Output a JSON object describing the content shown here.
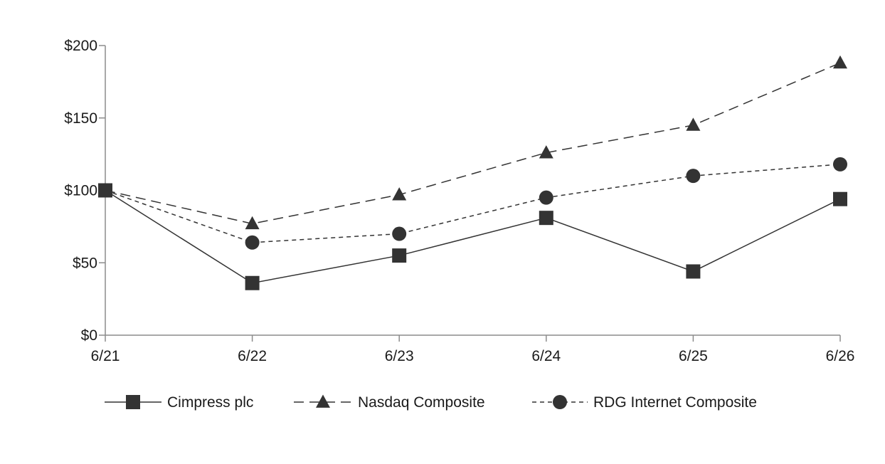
{
  "chart_data": {
    "type": "line",
    "title": "",
    "xlabel": "",
    "ylabel": "",
    "categories": [
      "6/21",
      "6/22",
      "6/23",
      "6/24",
      "6/25",
      "6/26"
    ],
    "ylim": [
      0,
      200
    ],
    "yticks": [
      0,
      50,
      100,
      150,
      200
    ],
    "ytick_labels": [
      "$0",
      "$50",
      "$100",
      "$150",
      "$200"
    ],
    "grid": false,
    "legend_position": "bottom",
    "series": [
      {
        "name": "Cimpress plc",
        "values": [
          100,
          36,
          55,
          81,
          44,
          94
        ],
        "marker": "square",
        "dash": "solid",
        "color": "#333333"
      },
      {
        "name": "Nasdaq Composite",
        "values": [
          100,
          77,
          97,
          126,
          145,
          188
        ],
        "marker": "triangle",
        "dash": "long-dash",
        "color": "#333333"
      },
      {
        "name": "RDG Internet Composite",
        "values": [
          100,
          64,
          70,
          95,
          110,
          118
        ],
        "marker": "circle",
        "dash": "short-dash",
        "color": "#333333"
      }
    ]
  }
}
